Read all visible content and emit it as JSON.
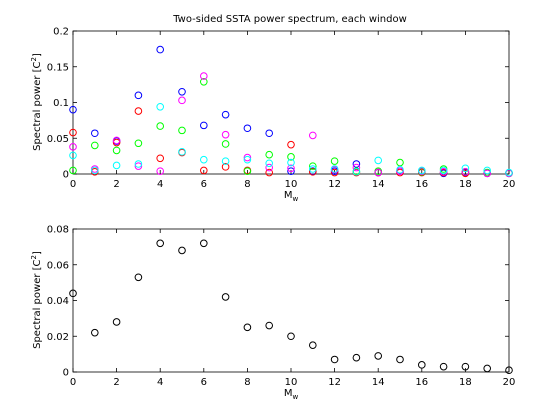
{
  "figure": {
    "background": "#ffffff",
    "axes_color": "#000000"
  },
  "chart_data": [
    {
      "type": "scatter",
      "title": "Two-sided SSTA power spectrum, each window",
      "xlabel": "M",
      "xlabel_sub": "w",
      "ylabel": "Spectral power [C",
      "ylabel_sup": "2",
      "ylabel_end": "]",
      "xlim": [
        0,
        20
      ],
      "ylim": [
        0,
        0.2
      ],
      "xticks": [
        0,
        2,
        4,
        6,
        8,
        10,
        12,
        14,
        16,
        18,
        20
      ],
      "yticks": [
        0,
        0.05,
        0.1,
        0.15,
        0.2
      ],
      "ytick_labels": [
        "0",
        "0.05",
        "0.1",
        "0.15",
        "0.2"
      ],
      "marker": "circle-open",
      "grid": false,
      "legend": false,
      "series": [
        {
          "color": "#0000ff",
          "x": [
            0,
            1,
            2,
            3,
            4,
            5,
            6,
            7,
            8,
            9,
            10,
            11,
            12,
            13,
            14,
            15,
            16,
            17,
            18,
            19,
            20
          ],
          "y": [
            0.09,
            0.057,
            0.046,
            0.11,
            0.174,
            0.115,
            0.068,
            0.083,
            0.064,
            0.057,
            0.004,
            0.004,
            0.004,
            0.014,
            0.002,
            0.004,
            0.003,
            0.001,
            0.002,
            0.001,
            0.001
          ]
        },
        {
          "color": "#ff0000",
          "x": [
            0,
            1,
            2,
            3,
            4,
            5,
            6,
            7,
            8,
            9,
            10,
            11,
            12,
            13,
            14,
            15,
            16,
            17,
            18,
            19,
            20
          ],
          "y": [
            0.058,
            0.003,
            0.044,
            0.088,
            0.022,
            0.03,
            0.005,
            0.01,
            0.005,
            0.002,
            0.041,
            0.003,
            0.002,
            0.002,
            0.002,
            0.002,
            0.002,
            0.002,
            0.001,
            0.001,
            0.001
          ]
        },
        {
          "color": "#00ff00",
          "x": [
            0,
            1,
            2,
            3,
            4,
            5,
            6,
            7,
            8,
            9,
            10,
            11,
            12,
            13,
            14,
            15,
            16,
            17,
            18,
            19,
            20
          ],
          "y": [
            0.005,
            0.04,
            0.033,
            0.043,
            0.067,
            0.061,
            0.129,
            0.042,
            0.004,
            0.027,
            0.024,
            0.011,
            0.018,
            0.004,
            0.004,
            0.016,
            0.003,
            0.007,
            0.003,
            0.002,
            0.001
          ]
        },
        {
          "color": "#ff00ff",
          "x": [
            0,
            1,
            2,
            3,
            4,
            5,
            6,
            7,
            8,
            9,
            10,
            11,
            12,
            13,
            14,
            15,
            16,
            17,
            18,
            19,
            20
          ],
          "y": [
            0.038,
            0.007,
            0.047,
            0.011,
            0.004,
            0.103,
            0.137,
            0.055,
            0.023,
            0.009,
            0.008,
            0.054,
            0.006,
            0.009,
            0.002,
            0.004,
            0.004,
            0.003,
            0.003,
            0.001,
            0.001
          ]
        },
        {
          "color": "#00ffff",
          "x": [
            0,
            1,
            2,
            3,
            4,
            5,
            6,
            7,
            8,
            9,
            10,
            11,
            12,
            13,
            14,
            15,
            16,
            17,
            18,
            19,
            20
          ],
          "y": [
            0.026,
            0.005,
            0.012,
            0.014,
            0.094,
            0.031,
            0.02,
            0.018,
            0.02,
            0.015,
            0.016,
            0.007,
            0.007,
            0.003,
            0.019,
            0.006,
            0.005,
            0.005,
            0.008,
            0.005,
            0.002
          ]
        }
      ]
    },
    {
      "type": "scatter",
      "title": "",
      "xlabel": "M",
      "xlabel_sub": "w",
      "ylabel": "Spectral power [C",
      "ylabel_sup": "2",
      "ylabel_end": "]",
      "xlim": [
        0,
        20
      ],
      "ylim": [
        0,
        0.08
      ],
      "xticks": [
        0,
        2,
        4,
        6,
        8,
        10,
        12,
        14,
        16,
        18,
        20
      ],
      "yticks": [
        0,
        0.02,
        0.04,
        0.06,
        0.08
      ],
      "ytick_labels": [
        "0",
        "0.02",
        "0.04",
        "0.06",
        "0.08"
      ],
      "marker": "circle-open",
      "grid": false,
      "legend": false,
      "series": [
        {
          "color": "#000000",
          "x": [
            0,
            1,
            2,
            3,
            4,
            5,
            6,
            7,
            8,
            9,
            10,
            11,
            12,
            13,
            14,
            15,
            16,
            17,
            18,
            19,
            20
          ],
          "y": [
            0.044,
            0.022,
            0.028,
            0.053,
            0.072,
            0.068,
            0.072,
            0.042,
            0.025,
            0.026,
            0.02,
            0.015,
            0.007,
            0.008,
            0.009,
            0.007,
            0.004,
            0.003,
            0.003,
            0.002,
            0.001
          ]
        }
      ]
    }
  ]
}
